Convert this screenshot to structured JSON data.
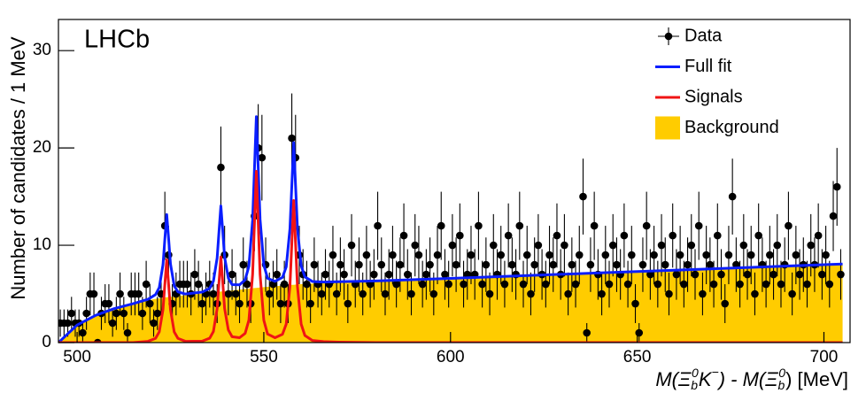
{
  "chart_data": {
    "type": "histogram-fit",
    "title": "LHCb",
    "ylabel": "Number of candidates / 1 MeV",
    "xlabel": [
      "M(Ξ",
      "b",
      "0",
      "K",
      "−",
      ") - M(Ξ",
      "b",
      "0",
      ") [MeV]"
    ],
    "xlim": [
      495,
      707
    ],
    "ylim": [
      0,
      33.2
    ],
    "xticks": [
      500,
      550,
      600,
      650,
      700
    ],
    "yticks": [
      0,
      10,
      20,
      30
    ],
    "legend": "top-right",
    "series": [
      {
        "name": "Data",
        "kind": "points",
        "color": "#000000",
        "x": [
          495.5,
          496.5,
          497.5,
          498.5,
          499.5,
          500.5,
          501.5,
          502.5,
          503.5,
          504.5,
          505.5,
          506.5,
          507.5,
          508.5,
          509.5,
          510.5,
          511.5,
          512.5,
          513.5,
          514.5,
          515.5,
          516.5,
          517.5,
          518.5,
          519.5,
          520.5,
          521.5,
          522.5,
          523.5,
          524.5,
          525.5,
          526.5,
          527.5,
          528.5,
          529.5,
          530.5,
          531.5,
          532.5,
          533.5,
          534.5,
          535.5,
          536.5,
          537.5,
          538.5,
          539.5,
          540.5,
          541.5,
          542.5,
          543.5,
          544.5,
          545.5,
          546.5,
          547.5,
          548.5,
          549.5,
          550.5,
          551.5,
          552.5,
          553.5,
          554.5,
          555.5,
          556.5,
          557.5,
          558.5,
          559.5,
          560.5,
          561.5,
          562.5,
          563.5,
          564.5,
          565.5,
          566.5,
          567.5,
          568.5,
          569.5,
          570.5,
          571.5,
          572.5,
          573.5,
          574.5,
          575.5,
          576.5,
          577.5,
          578.5,
          579.5,
          580.5,
          581.5,
          582.5,
          583.5,
          584.5,
          585.5,
          586.5,
          587.5,
          588.5,
          589.5,
          590.5,
          591.5,
          592.5,
          593.5,
          594.5,
          595.5,
          596.5,
          597.5,
          598.5,
          599.5,
          600.5,
          601.5,
          602.5,
          603.5,
          604.5,
          605.5,
          606.5,
          607.5,
          608.5,
          609.5,
          610.5,
          611.5,
          612.5,
          613.5,
          614.5,
          615.5,
          616.5,
          617.5,
          618.5,
          619.5,
          620.5,
          621.5,
          622.5,
          623.5,
          624.5,
          625.5,
          626.5,
          627.5,
          628.5,
          629.5,
          630.5,
          631.5,
          632.5,
          633.5,
          634.5,
          635.5,
          636.5,
          637.5,
          638.5,
          639.5,
          640.5,
          641.5,
          642.5,
          643.5,
          644.5,
          645.5,
          646.5,
          647.5,
          648.5,
          649.5,
          650.5,
          651.5,
          652.5,
          653.5,
          654.5,
          655.5,
          656.5,
          657.5,
          658.5,
          659.5,
          660.5,
          661.5,
          662.5,
          663.5,
          664.5,
          665.5,
          666.5,
          667.5,
          668.5,
          669.5,
          670.5,
          671.5,
          672.5,
          673.5,
          674.5,
          675.5,
          676.5,
          677.5,
          678.5,
          679.5,
          680.5,
          681.5,
          682.5,
          683.5,
          684.5,
          685.5,
          686.5,
          687.5,
          688.5,
          689.5,
          690.5,
          691.5,
          692.5,
          693.5,
          694.5,
          695.5,
          696.5,
          697.5,
          698.5,
          699.5,
          700.5,
          701.5,
          702.5,
          703.5,
          704.5
        ],
        "values": [
          2,
          2,
          2,
          3,
          2,
          2,
          1,
          3,
          5,
          5,
          0,
          3,
          4,
          4,
          2,
          3,
          5,
          3,
          1,
          5,
          5,
          5,
          3,
          6,
          4,
          2,
          3,
          5,
          12,
          9,
          4,
          5,
          6,
          6,
          6,
          5,
          7,
          6,
          4,
          5,
          6,
          5,
          4,
          18,
          9,
          5,
          7,
          5,
          4,
          8,
          6,
          4,
          13,
          20,
          19,
          8,
          5,
          6,
          7,
          4,
          6,
          4,
          21,
          19,
          9,
          7,
          6,
          4,
          8,
          6,
          5,
          7,
          6,
          9,
          5,
          8,
          7,
          4,
          10,
          6,
          8,
          5,
          9,
          6,
          7,
          12,
          8,
          5,
          7,
          9,
          6,
          8,
          11,
          7,
          5,
          10,
          9,
          6,
          7,
          8,
          5,
          9,
          12,
          7,
          6,
          10,
          8,
          11,
          6,
          7,
          9,
          7,
          12,
          6,
          8,
          5,
          10,
          7,
          9,
          6,
          11,
          8,
          7,
          12,
          6,
          9,
          5,
          8,
          10,
          7,
          6,
          9,
          8,
          11,
          7,
          10,
          5,
          8,
          6,
          9,
          15,
          1,
          8,
          12,
          7,
          5,
          9,
          6,
          10,
          8,
          7,
          11,
          6,
          9,
          4,
          1,
          8,
          12,
          7,
          9,
          6,
          10,
          8,
          5,
          11,
          7,
          9,
          6,
          8,
          10,
          7,
          12,
          5,
          9,
          8,
          6,
          11,
          7,
          4,
          9,
          15,
          8,
          6,
          10,
          7,
          9,
          5,
          11,
          8,
          6,
          9,
          7,
          10,
          6,
          8,
          12,
          5,
          9,
          7,
          8,
          6,
          10,
          8,
          11,
          7,
          9,
          6,
          13,
          16,
          7
        ],
        "errors": [
          1.4,
          1.4,
          1.4,
          1.7,
          1.4,
          1.4,
          1,
          1.7,
          2.2,
          2.2,
          0,
          1.7,
          2,
          2,
          1.4,
          1.7,
          2.2,
          1.7,
          1,
          2.2,
          2.2,
          2.2,
          1.7,
          2.4,
          2,
          1.4,
          1.7,
          2.2,
          3.5,
          3,
          2,
          2.2,
          2.4,
          2.4,
          2.4,
          2.2,
          2.6,
          2.4,
          2,
          2.2,
          2.4,
          2.2,
          2,
          4.2,
          3,
          2.2,
          2.6,
          2.2,
          2,
          2.8,
          2.4,
          2,
          3.6,
          4.5,
          4.4,
          2.8,
          2.2,
          2.4,
          2.6,
          2,
          2.4,
          2,
          4.6,
          4.4,
          3,
          2.6,
          2.4,
          2,
          2.8,
          2.4,
          2.2,
          2.6,
          2.4,
          3,
          2.2,
          2.8,
          2.6,
          2,
          3.2,
          2.4,
          2.8,
          2.2,
          3,
          2.4,
          2.6,
          3.5,
          2.8,
          2.2,
          2.6,
          3,
          2.4,
          2.8,
          3.3,
          2.6,
          2.2,
          3.2,
          3,
          2.4,
          2.6,
          2.8,
          2.2,
          3,
          3.5,
          2.6,
          2.4,
          3.2,
          2.8,
          3.3,
          2.4,
          2.6,
          3,
          2.6,
          3.5,
          2.4,
          2.8,
          2.2,
          3.2,
          2.6,
          3,
          2.4,
          3.3,
          2.8,
          2.6,
          3.5,
          2.4,
          3,
          2.2,
          2.8,
          3.2,
          2.6,
          2.4,
          3,
          2.8,
          3.3,
          2.6,
          3.2,
          2.2,
          2.8,
          2.4,
          3,
          3.9,
          1,
          2.8,
          3.5,
          2.6,
          2.2,
          3,
          2.4,
          3.2,
          2.8,
          2.6,
          3.3,
          2.4,
          3,
          2,
          1,
          2.8,
          3.5,
          2.6,
          3,
          2.4,
          3.2,
          2.8,
          2.2,
          3.3,
          2.6,
          3,
          2.4,
          2.8,
          3.2,
          2.6,
          3.5,
          2.2,
          3,
          2.8,
          2.4,
          3.3,
          2.6,
          2,
          3,
          3.9,
          2.8,
          2.4,
          3.2,
          2.6,
          3,
          2.2,
          3.3,
          2.8,
          2.4,
          3,
          2.6,
          3.2,
          2.4,
          2.8,
          3.5,
          2.2,
          3,
          2.6,
          2.8,
          2.4,
          3.2,
          2.8,
          3.3,
          2.6,
          3,
          2.4,
          3.6,
          4,
          2.6
        ]
      },
      {
        "name": "Full fit",
        "kind": "line",
        "color": "#0a1eff",
        "x": [
          495,
          500,
          505,
          510,
          515,
          519,
          521,
          522,
          523,
          523.5,
          524,
          524.5,
          525,
          526,
          527,
          529,
          533.5,
          535.5,
          536.5,
          537.5,
          538,
          538.5,
          539,
          539.5,
          540.5,
          541.5,
          543.5,
          545,
          546,
          547,
          547.5,
          548,
          548.5,
          549,
          550,
          551,
          553,
          555,
          556,
          557,
          557.5,
          558,
          558.5,
          559,
          560,
          561,
          563,
          566,
          570,
          580,
          600,
          620,
          640,
          660,
          680,
          700,
          705
        ],
        "values": [
          0,
          1.8,
          2.8,
          3.5,
          4.0,
          4.45,
          4.93,
          5.65,
          8.0,
          10.65,
          13.15,
          10.7,
          8.1,
          5.84,
          5.21,
          4.99,
          5.19,
          5.57,
          6.3,
          8.7,
          11.42,
          14.04,
          11.46,
          8.78,
          6.62,
          5.96,
          5.94,
          6.45,
          7.84,
          12.58,
          17.9,
          23.22,
          17.94,
          12.66,
          8.0,
          6.61,
          6.29,
          6.7,
          7.78,
          11.71,
          16.13,
          20.54,
          16.16,
          11.77,
          7.9,
          6.75,
          6.28,
          6.22,
          6.25,
          6.33,
          6.6,
          6.88,
          7.16,
          7.44,
          7.72,
          8.0,
          8.07
        ]
      },
      {
        "name": "Signals",
        "kind": "line",
        "color": "#f01414",
        "x": [
          495,
          500,
          505,
          510,
          515,
          519,
          521,
          522,
          523,
          523.5,
          524,
          524.5,
          525,
          526,
          527,
          529,
          533.5,
          535.5,
          536.5,
          537.5,
          538,
          538.5,
          539,
          539.5,
          540.5,
          541.5,
          543.5,
          545,
          546,
          547,
          547.5,
          548,
          548.5,
          549,
          550,
          551,
          553,
          555,
          556,
          557,
          557.5,
          558,
          558.5,
          559,
          560,
          561,
          563,
          566,
          570,
          580,
          600,
          620,
          640,
          660,
          680,
          700,
          705
        ],
        "values": [
          0,
          0,
          0,
          0,
          0,
          0.13,
          0.43,
          1.1,
          3.4,
          6.0,
          8.5,
          6.0,
          3.4,
          1.1,
          0.43,
          0.13,
          0.15,
          0.45,
          1.14,
          3.5,
          6.2,
          8.8,
          6.2,
          3.5,
          1.3,
          0.6,
          0.5,
          0.95,
          2.3,
          7.0,
          12.3,
          17.6,
          12.3,
          7.0,
          2.3,
          0.88,
          0.5,
          0.85,
          1.9,
          5.8,
          10.2,
          14.6,
          10.2,
          5.8,
          1.9,
          0.73,
          0.22,
          0.1,
          0.05,
          0,
          0,
          0,
          0,
          0,
          0,
          0,
          0
        ]
      },
      {
        "name": "Background",
        "kind": "area",
        "color": "#ffcc00",
        "x": [
          495,
          500,
          505,
          510,
          515,
          519,
          521,
          522,
          523,
          523.5,
          524,
          524.5,
          525,
          526,
          527,
          529,
          533.5,
          535.5,
          536.5,
          537.5,
          538,
          538.5,
          539,
          539.5,
          540.5,
          541.5,
          543.5,
          545,
          546,
          547,
          547.5,
          548,
          548.5,
          549,
          550,
          551,
          553,
          555,
          556,
          557,
          557.5,
          558,
          558.5,
          559,
          560,
          561,
          563,
          566,
          570,
          580,
          600,
          620,
          640,
          660,
          680,
          700,
          705
        ],
        "values": [
          0,
          1.8,
          2.8,
          3.5,
          4.0,
          4.32,
          4.5,
          4.55,
          4.6,
          4.65,
          4.65,
          4.7,
          4.7,
          4.74,
          4.78,
          4.86,
          5.04,
          5.12,
          5.16,
          5.2,
          5.22,
          5.24,
          5.26,
          5.28,
          5.32,
          5.36,
          5.44,
          5.5,
          5.54,
          5.58,
          5.6,
          5.62,
          5.64,
          5.66,
          5.7,
          5.73,
          5.79,
          5.85,
          5.88,
          5.91,
          5.93,
          5.94,
          5.96,
          5.97,
          6.0,
          6.02,
          6.06,
          6.12,
          6.2,
          6.33,
          6.6,
          6.88,
          7.16,
          7.44,
          7.72,
          8.0,
          8.07
        ]
      }
    ]
  }
}
